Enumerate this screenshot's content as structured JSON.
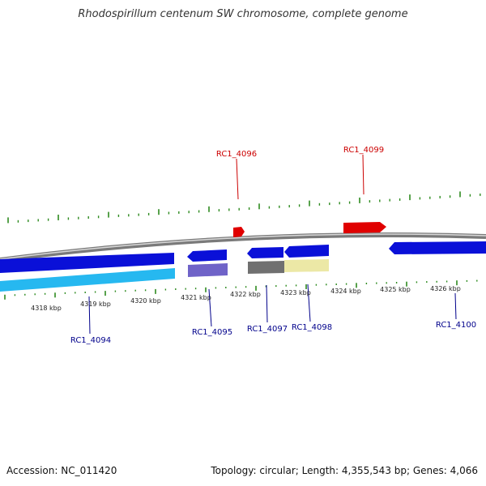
{
  "title": "Rhodospirillum centenum SW chromosome, complete genome",
  "footer": {
    "accession": "Accession: NC_011420",
    "summary": "Topology: circular; Length: 4,355,543 bp; Genes: 4,066"
  },
  "colors": {
    "tick": "#2e8b1f",
    "backbone": "#8c8c8c",
    "forward_gene": "#e00000",
    "reverse_gene": "#0a10d8",
    "cds_light_blue": "#26b8f0",
    "cds_purple": "#6f63c8",
    "cds_gray": "#707070",
    "cds_khaki": "#ece8a6",
    "label_forward": "#cc0000",
    "label_reverse": "#00008b"
  },
  "scale_labels": [
    "4318 kbp",
    "4319 kbp",
    "4320 kbp",
    "4321 kbp",
    "4322 kbp",
    "4323 kbp",
    "4324 kbp",
    "4325 kbp",
    "4326 kbp"
  ],
  "genes": [
    {
      "id": "RC1_4094",
      "strand": "reverse"
    },
    {
      "id": "RC1_4095",
      "strand": "reverse"
    },
    {
      "id": "RC1_4096",
      "strand": "forward"
    },
    {
      "id": "RC1_4097",
      "strand": "reverse"
    },
    {
      "id": "RC1_4098",
      "strand": "reverse"
    },
    {
      "id": "RC1_4099",
      "strand": "forward"
    },
    {
      "id": "RC1_4100",
      "strand": "reverse"
    }
  ]
}
